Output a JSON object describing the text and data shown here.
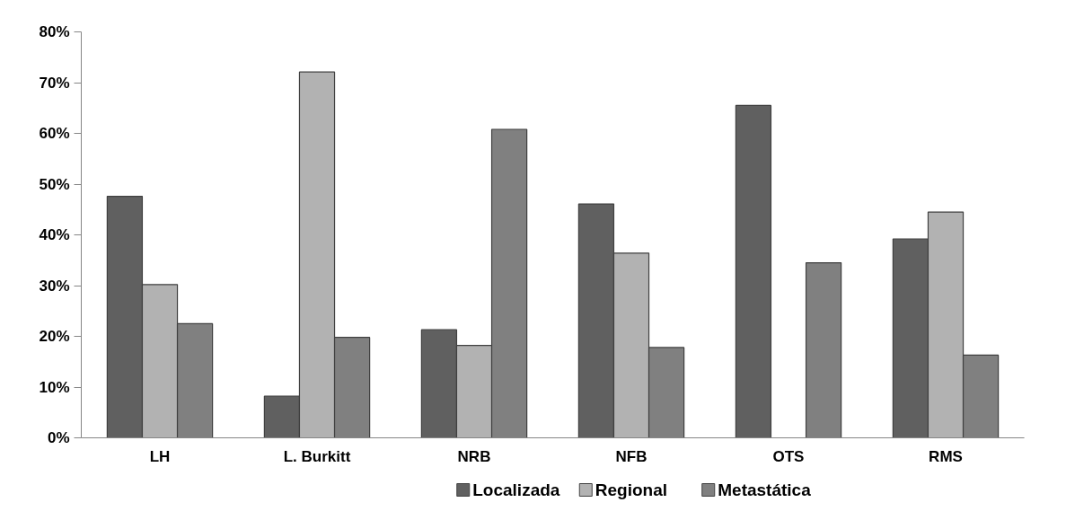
{
  "chart_data": {
    "type": "bar",
    "categories": [
      "LH",
      "L. Burkitt",
      "NRB",
      "NFB",
      "OTS",
      "RMS"
    ],
    "series": [
      {
        "name": "Localizada",
        "color": "#606060",
        "values": [
          47.6,
          8.2,
          21.3,
          46.1,
          65.5,
          39.2
        ]
      },
      {
        "name": "Regional",
        "color": "#b2b2b2",
        "values": [
          30.2,
          72.1,
          18.2,
          36.4,
          null,
          44.5
        ]
      },
      {
        "name": "Metastática",
        "color": "#808080",
        "values": [
          22.5,
          19.8,
          60.8,
          17.8,
          34.5,
          16.3
        ]
      }
    ],
    "ylim": [
      0,
      80
    ],
    "yticks": [
      {
        "value": 0,
        "label": "0%"
      },
      {
        "value": 10,
        "label": "10%"
      },
      {
        "value": 20,
        "label": "20%"
      },
      {
        "value": 30,
        "label": "30%"
      },
      {
        "value": 40,
        "label": "40%"
      },
      {
        "value": 50,
        "label": "50%"
      },
      {
        "value": 60,
        "label": "60%"
      },
      {
        "value": 70,
        "label": "70%"
      },
      {
        "value": 80,
        "label": "80%"
      }
    ],
    "grid": false,
    "legend": "bottom"
  }
}
